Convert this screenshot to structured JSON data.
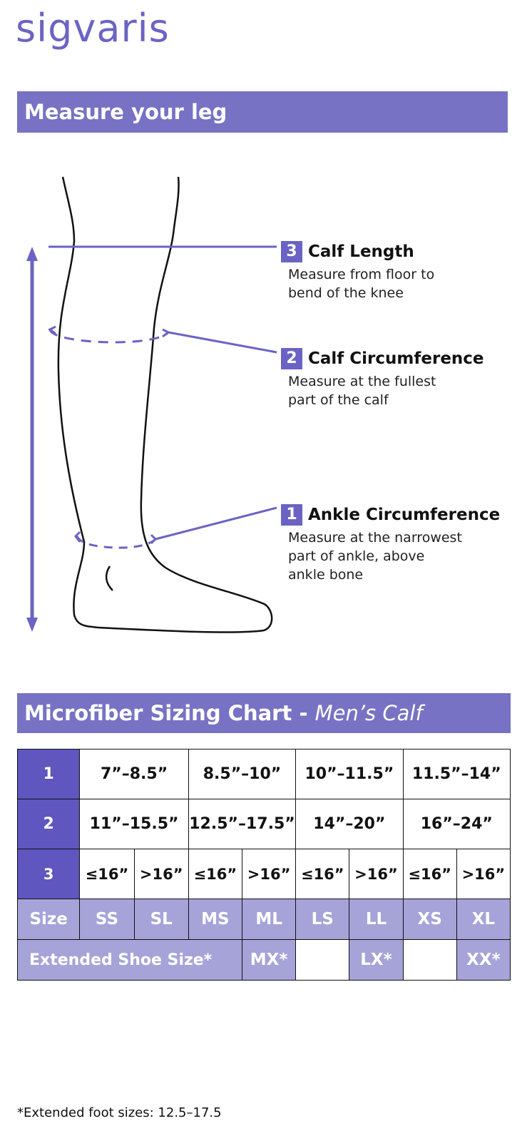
{
  "brand": {
    "logo_text": "sigvaris",
    "color": "#6b63c4"
  },
  "section1": {
    "title": "Measure your leg"
  },
  "measurements": [
    {
      "number": "3",
      "title": "Calf Length",
      "desc_lines": [
        "Measure from floor to",
        "bend of the knee"
      ]
    },
    {
      "number": "2",
      "title": "Calf Circumference",
      "desc_lines": [
        "Measure at the fullest",
        "part of the calf"
      ]
    },
    {
      "number": "1",
      "title": "Ankle Circumference",
      "desc_lines": [
        "Measure at the narrowest",
        "part of ankle, above",
        "ankle bone"
      ]
    }
  ],
  "section2": {
    "title": "Microfiber Sizing Chart - ",
    "title_italic": "Men’s Calf"
  },
  "chart": {
    "row1": {
      "head": "1",
      "cells": [
        "7”–8.5”",
        "8.5”–10”",
        "10”–11.5”",
        "11.5”–14”"
      ]
    },
    "row2": {
      "head": "2",
      "cells": [
        "11”–15.5”",
        "12.5”–17.5”",
        "14”–20”",
        "16”–24”"
      ]
    },
    "row3": {
      "head": "3",
      "cells": [
        "≤16”",
        ">16”",
        "≤16”",
        ">16”",
        "≤16”",
        ">16”",
        "≤16”",
        ">16”"
      ]
    },
    "size_row": {
      "label": "Size",
      "cells": [
        "SS",
        "SL",
        "MS",
        "ML",
        "LS",
        "LL",
        "XS",
        "XL"
      ]
    },
    "extended_row": {
      "label": "Extended Shoe Size*",
      "cells": [
        "MX*",
        "",
        "LX*",
        "",
        "XX*"
      ]
    }
  },
  "footnote": "*Extended foot sizes: 12.5–17.5",
  "colors": {
    "accent": "#6b63c4",
    "banner": "#7772c4",
    "row_head": "#5f56bf",
    "size_row": "#a6a3d9"
  }
}
